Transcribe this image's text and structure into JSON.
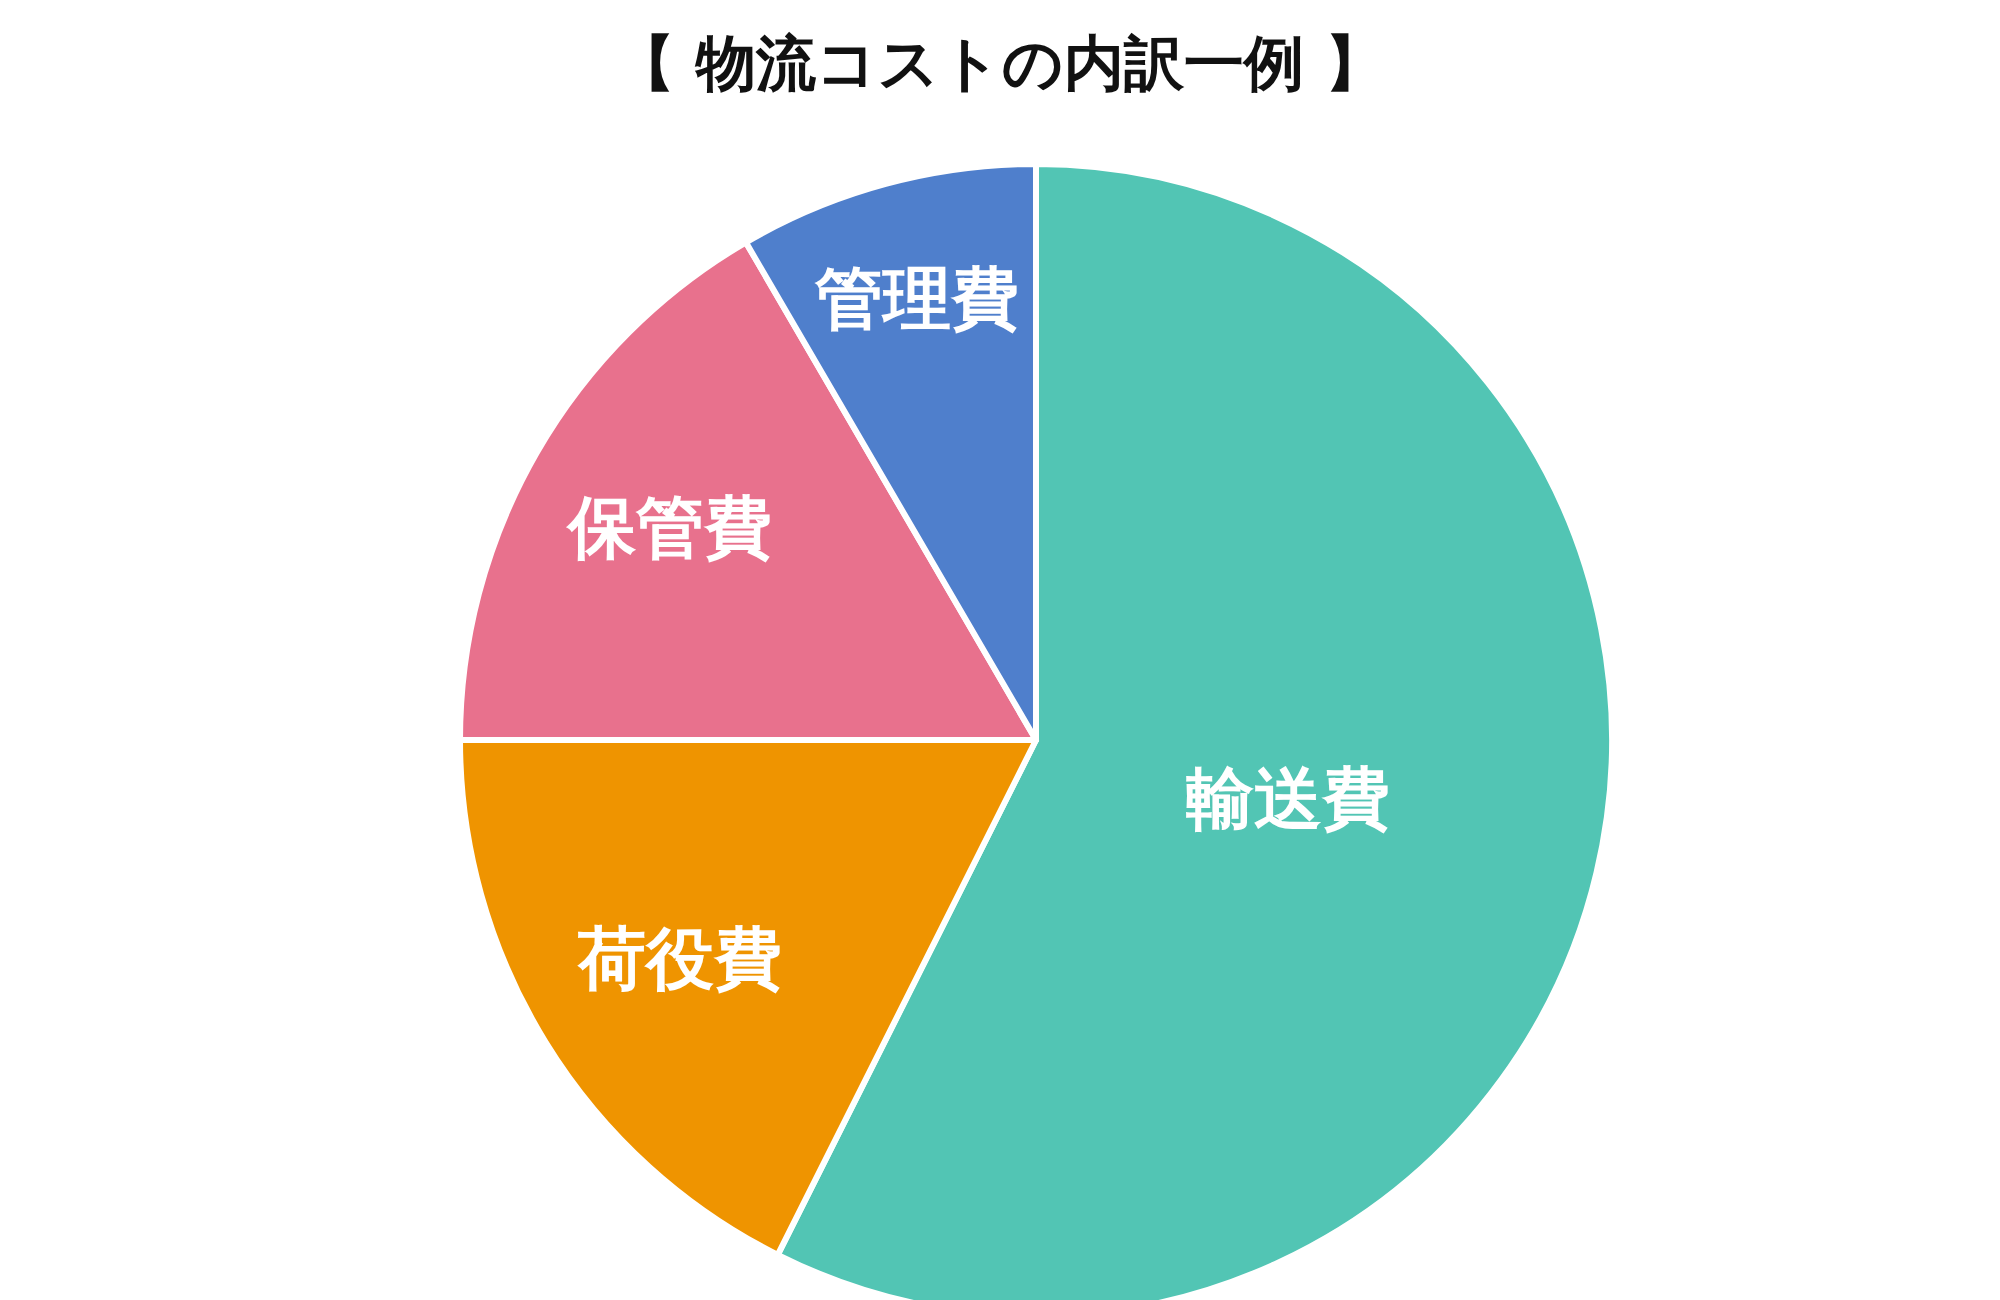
{
  "chart_data": {
    "type": "pie",
    "title": "【 物流コストの内訳一例 】",
    "categories": [
      "輸送費",
      "荷役費",
      "保管費",
      "管理費"
    ],
    "values": [
      57.4,
      17.6,
      16.6,
      8.4
    ],
    "colors": [
      "#52c5b4",
      "#ef9400",
      "#e8718d",
      "#4f7fcc"
    ]
  }
}
